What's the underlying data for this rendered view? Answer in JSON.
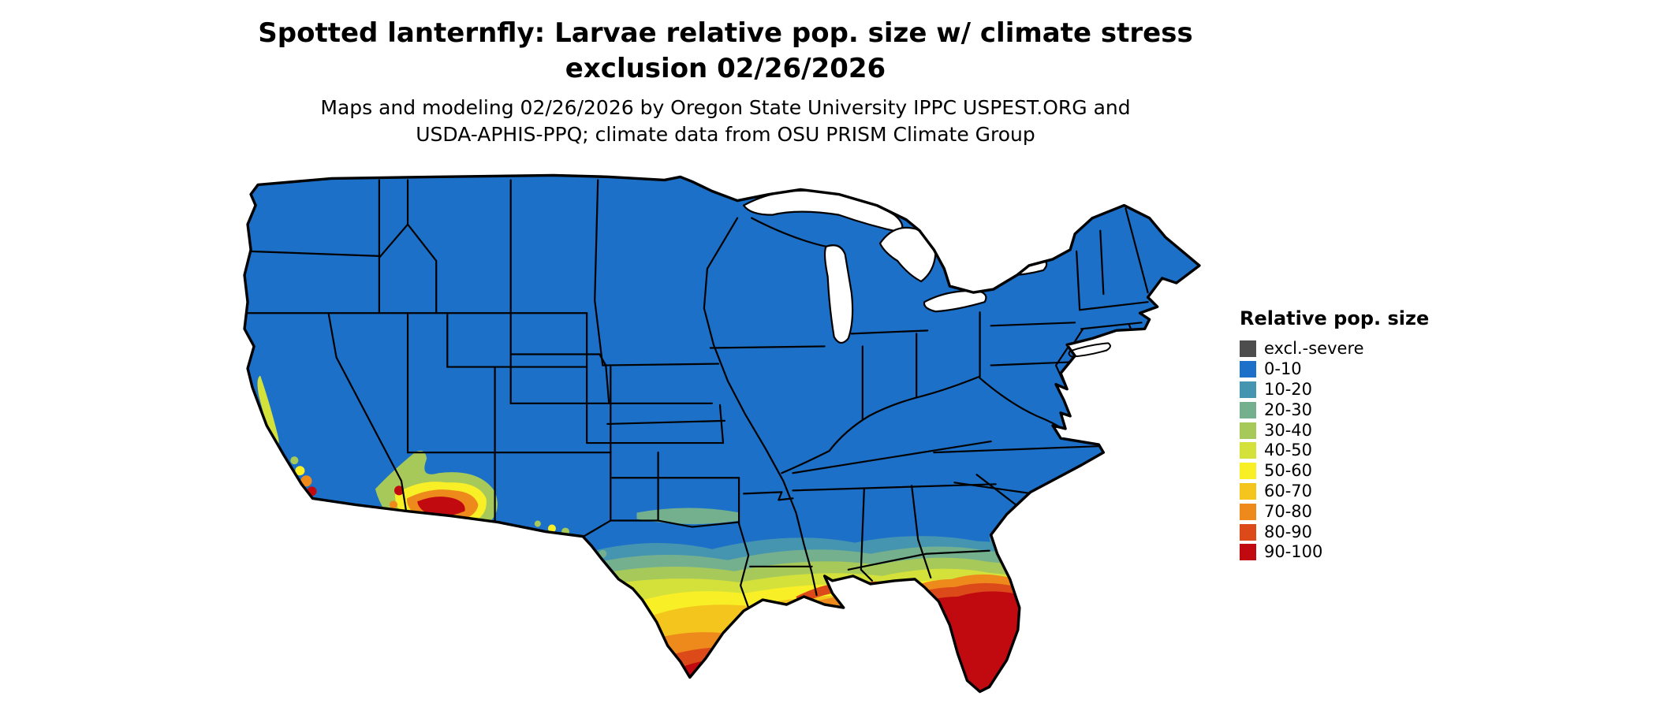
{
  "title": {
    "line1": "Spotted lanternfly: Larvae relative pop. size w/ climate stress",
    "line2": "exclusion 02/26/2026"
  },
  "subtitle": {
    "line1": "Maps and modeling 02/26/2026 by Oregon State University IPPC USPEST.ORG and",
    "line2": "USDA-APHIS-PPQ; climate data from OSU PRISM Climate Group"
  },
  "legend": {
    "title": "Relative pop. size",
    "items": [
      {
        "label": "excl.-severe",
        "color": "#4d4d4d"
      },
      {
        "label": "0-10",
        "color": "#1c70c8"
      },
      {
        "label": "10-20",
        "color": "#4695b0"
      },
      {
        "label": "20-30",
        "color": "#74b08e"
      },
      {
        "label": "30-40",
        "color": "#a6c95a"
      },
      {
        "label": "40-50",
        "color": "#d3e13a"
      },
      {
        "label": "50-60",
        "color": "#f8ef27"
      },
      {
        "label": "60-70",
        "color": "#f4c51d"
      },
      {
        "label": "70-80",
        "color": "#ee8a1c"
      },
      {
        "label": "80-90",
        "color": "#dc4a1a"
      },
      {
        "label": "90-100",
        "color": "#c00a10"
      }
    ]
  },
  "map": {
    "outline_color": "#000000",
    "water_color": "#ffffff",
    "base_fill_label": "0-10"
  }
}
